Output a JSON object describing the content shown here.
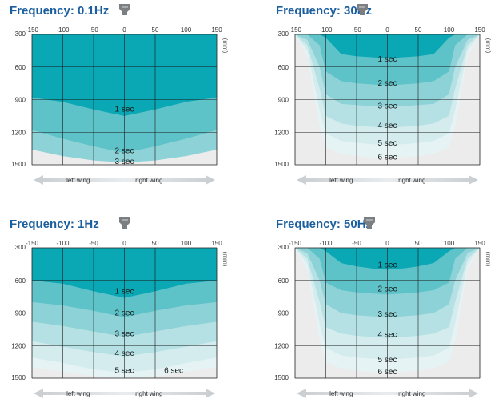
{
  "chart_data": [
    {
      "type": "area",
      "title": "Frequency: 0.1Hz",
      "xlim": [
        -150,
        150
      ],
      "ylim": [
        300,
        1500
      ],
      "x_ticks": [
        -150,
        -100,
        -50,
        0,
        50,
        100,
        150
      ],
      "y_ticks": [
        300,
        600,
        900,
        1200,
        1500
      ],
      "unit": "(mm)",
      "wing_left": "left wing",
      "wing_right": "right wing",
      "x": [
        -150,
        -100,
        -50,
        0,
        50,
        100,
        150
      ],
      "bands": [
        {
          "label": "1 sec",
          "label_at": [
            0,
            990
          ],
          "boundary": [
            880,
            920,
            990,
            1050,
            990,
            920,
            880
          ]
        },
        {
          "label": "2 sec",
          "label_at": [
            0,
            1370
          ],
          "boundary": [
            1180,
            1260,
            1330,
            1390,
            1330,
            1260,
            1180
          ]
        },
        {
          "label": "3 sec",
          "label_at": [
            0,
            1470
          ],
          "boundary": [
            1360,
            1420,
            1460,
            1480,
            1460,
            1420,
            1360
          ]
        }
      ]
    },
    {
      "type": "area",
      "title": "Frequency: 30Hz",
      "xlim": [
        -150,
        150
      ],
      "ylim": [
        300,
        1500
      ],
      "x_ticks": [
        -150,
        -100,
        -50,
        0,
        50,
        100,
        150
      ],
      "y_ticks": [
        300,
        600,
        900,
        1200,
        1500
      ],
      "unit": "(mm)",
      "wing_left": "left wing",
      "wing_right": "right wing",
      "x": [
        -150,
        -130,
        -110,
        -100,
        -75,
        -50,
        -25,
        0,
        25,
        50,
        75,
        100,
        110,
        130,
        150
      ],
      "bands": [
        {
          "label": "1 sec",
          "label_at": [
            0,
            530
          ],
          "boundary": [
            300,
            300,
            300,
            330,
            480,
            500,
            510,
            520,
            510,
            500,
            480,
            330,
            300,
            300,
            300
          ]
        },
        {
          "label": "2 sec",
          "label_at": [
            0,
            750
          ],
          "boundary": [
            300,
            300,
            400,
            640,
            730,
            750,
            760,
            770,
            760,
            750,
            730,
            640,
            400,
            300,
            300
          ]
        },
        {
          "label": "3 sec",
          "label_at": [
            0,
            960
          ],
          "boundary": [
            300,
            350,
            600,
            850,
            940,
            950,
            960,
            970,
            960,
            950,
            940,
            850,
            600,
            350,
            300
          ]
        },
        {
          "label": "4 sec",
          "label_at": [
            0,
            1140
          ],
          "boundary": [
            300,
            400,
            800,
            1050,
            1120,
            1140,
            1150,
            1160,
            1150,
            1140,
            1120,
            1050,
            800,
            400,
            300
          ]
        },
        {
          "label": "5 sec",
          "label_at": [
            0,
            1300
          ],
          "boundary": [
            300,
            450,
            1000,
            1210,
            1280,
            1300,
            1310,
            1320,
            1310,
            1300,
            1280,
            1210,
            1000,
            450,
            300
          ]
        },
        {
          "label": "6 sec",
          "label_at": [
            0,
            1430
          ],
          "boundary": [
            300,
            500,
            1150,
            1340,
            1400,
            1420,
            1430,
            1440,
            1430,
            1420,
            1400,
            1340,
            1150,
            500,
            300
          ]
        }
      ]
    },
    {
      "type": "area",
      "title": "Frequency: 1Hz",
      "xlim": [
        -150,
        150
      ],
      "ylim": [
        300,
        1500
      ],
      "x_ticks": [
        -150,
        -100,
        -50,
        0,
        50,
        100,
        150
      ],
      "y_ticks": [
        300,
        600,
        900,
        1200,
        1500
      ],
      "unit": "(mm)",
      "wing_left": "left wing",
      "wing_right": "right wing",
      "x": [
        -150,
        -100,
        -50,
        0,
        50,
        100,
        150
      ],
      "bands": [
        {
          "label": "1 sec",
          "label_at": [
            0,
            700
          ],
          "boundary": [
            600,
            630,
            700,
            760,
            700,
            630,
            600
          ]
        },
        {
          "label": "2 sec",
          "label_at": [
            0,
            900
          ],
          "boundary": [
            800,
            830,
            880,
            940,
            880,
            830,
            800
          ]
        },
        {
          "label": "3 sec",
          "label_at": [
            0,
            1090
          ],
          "boundary": [
            980,
            1020,
            1070,
            1120,
            1070,
            1020,
            980
          ]
        },
        {
          "label": "4 sec",
          "label_at": [
            0,
            1270
          ],
          "boundary": [
            1160,
            1210,
            1260,
            1300,
            1260,
            1210,
            1160
          ]
        },
        {
          "label": "5 sec",
          "label_at": [
            0,
            1430
          ],
          "boundary": [
            1310,
            1360,
            1420,
            1450,
            1420,
            1360,
            1310
          ]
        },
        {
          "label": "6 sec",
          "label_at": [
            80,
            1430
          ],
          "boundary": [
            1400,
            1440,
            1480,
            1500,
            1480,
            1440,
            1400
          ]
        }
      ]
    },
    {
      "type": "area",
      "title": "Frequency: 50Hz",
      "xlim": [
        -150,
        150
      ],
      "ylim": [
        300,
        1500
      ],
      "x_ticks": [
        -150,
        -100,
        -50,
        0,
        50,
        100,
        150
      ],
      "y_ticks": [
        300,
        600,
        900,
        1200,
        1500
      ],
      "unit": "(mm)",
      "wing_left": "left wing",
      "wing_right": "right wing",
      "x": [
        -150,
        -130,
        -110,
        -100,
        -75,
        -50,
        -25,
        0,
        25,
        50,
        75,
        100,
        110,
        130,
        150
      ],
      "bands": [
        {
          "label": "1 sec",
          "label_at": [
            0,
            460
          ],
          "boundary": [
            300,
            300,
            300,
            330,
            440,
            470,
            490,
            500,
            490,
            470,
            440,
            330,
            300,
            300,
            300
          ]
        },
        {
          "label": "2 sec",
          "label_at": [
            0,
            680
          ],
          "boundary": [
            300,
            300,
            400,
            620,
            690,
            710,
            720,
            730,
            720,
            710,
            690,
            620,
            400,
            300,
            300
          ]
        },
        {
          "label": "3 sec",
          "label_at": [
            0,
            910
          ],
          "boundary": [
            300,
            350,
            600,
            820,
            900,
            920,
            930,
            940,
            930,
            920,
            900,
            820,
            600,
            350,
            300
          ]
        },
        {
          "label": "4 sec",
          "label_at": [
            0,
            1100
          ],
          "boundary": [
            300,
            400,
            800,
            1030,
            1090,
            1110,
            1120,
            1130,
            1120,
            1110,
            1090,
            1030,
            800,
            400,
            300
          ]
        },
        {
          "label": "5 sec",
          "label_at": [
            0,
            1330
          ],
          "boundary": [
            300,
            450,
            1000,
            1220,
            1290,
            1310,
            1320,
            1330,
            1320,
            1310,
            1290,
            1220,
            1000,
            450,
            300
          ]
        },
        {
          "label": "6 sec",
          "label_at": [
            0,
            1440
          ],
          "boundary": [
            300,
            500,
            1150,
            1350,
            1410,
            1430,
            1440,
            1450,
            1440,
            1430,
            1410,
            1350,
            1150,
            500,
            300
          ]
        }
      ]
    }
  ],
  "colors": {
    "title": "#1b5f9e",
    "background_gray": "#ececec",
    "palette": [
      "#0aa7b4",
      "#2fb3bd",
      "#5ec2c9",
      "#8dd2d7",
      "#b5e1e4",
      "#d4ecee",
      "#e6f3f4"
    ],
    "grid": "#1a1a1a",
    "arrow": "#c7cbcc",
    "icon": "#7b7f82"
  },
  "icons": {
    "nozzle": "nozzle-icon",
    "arrow": "double-arrow-icon"
  }
}
